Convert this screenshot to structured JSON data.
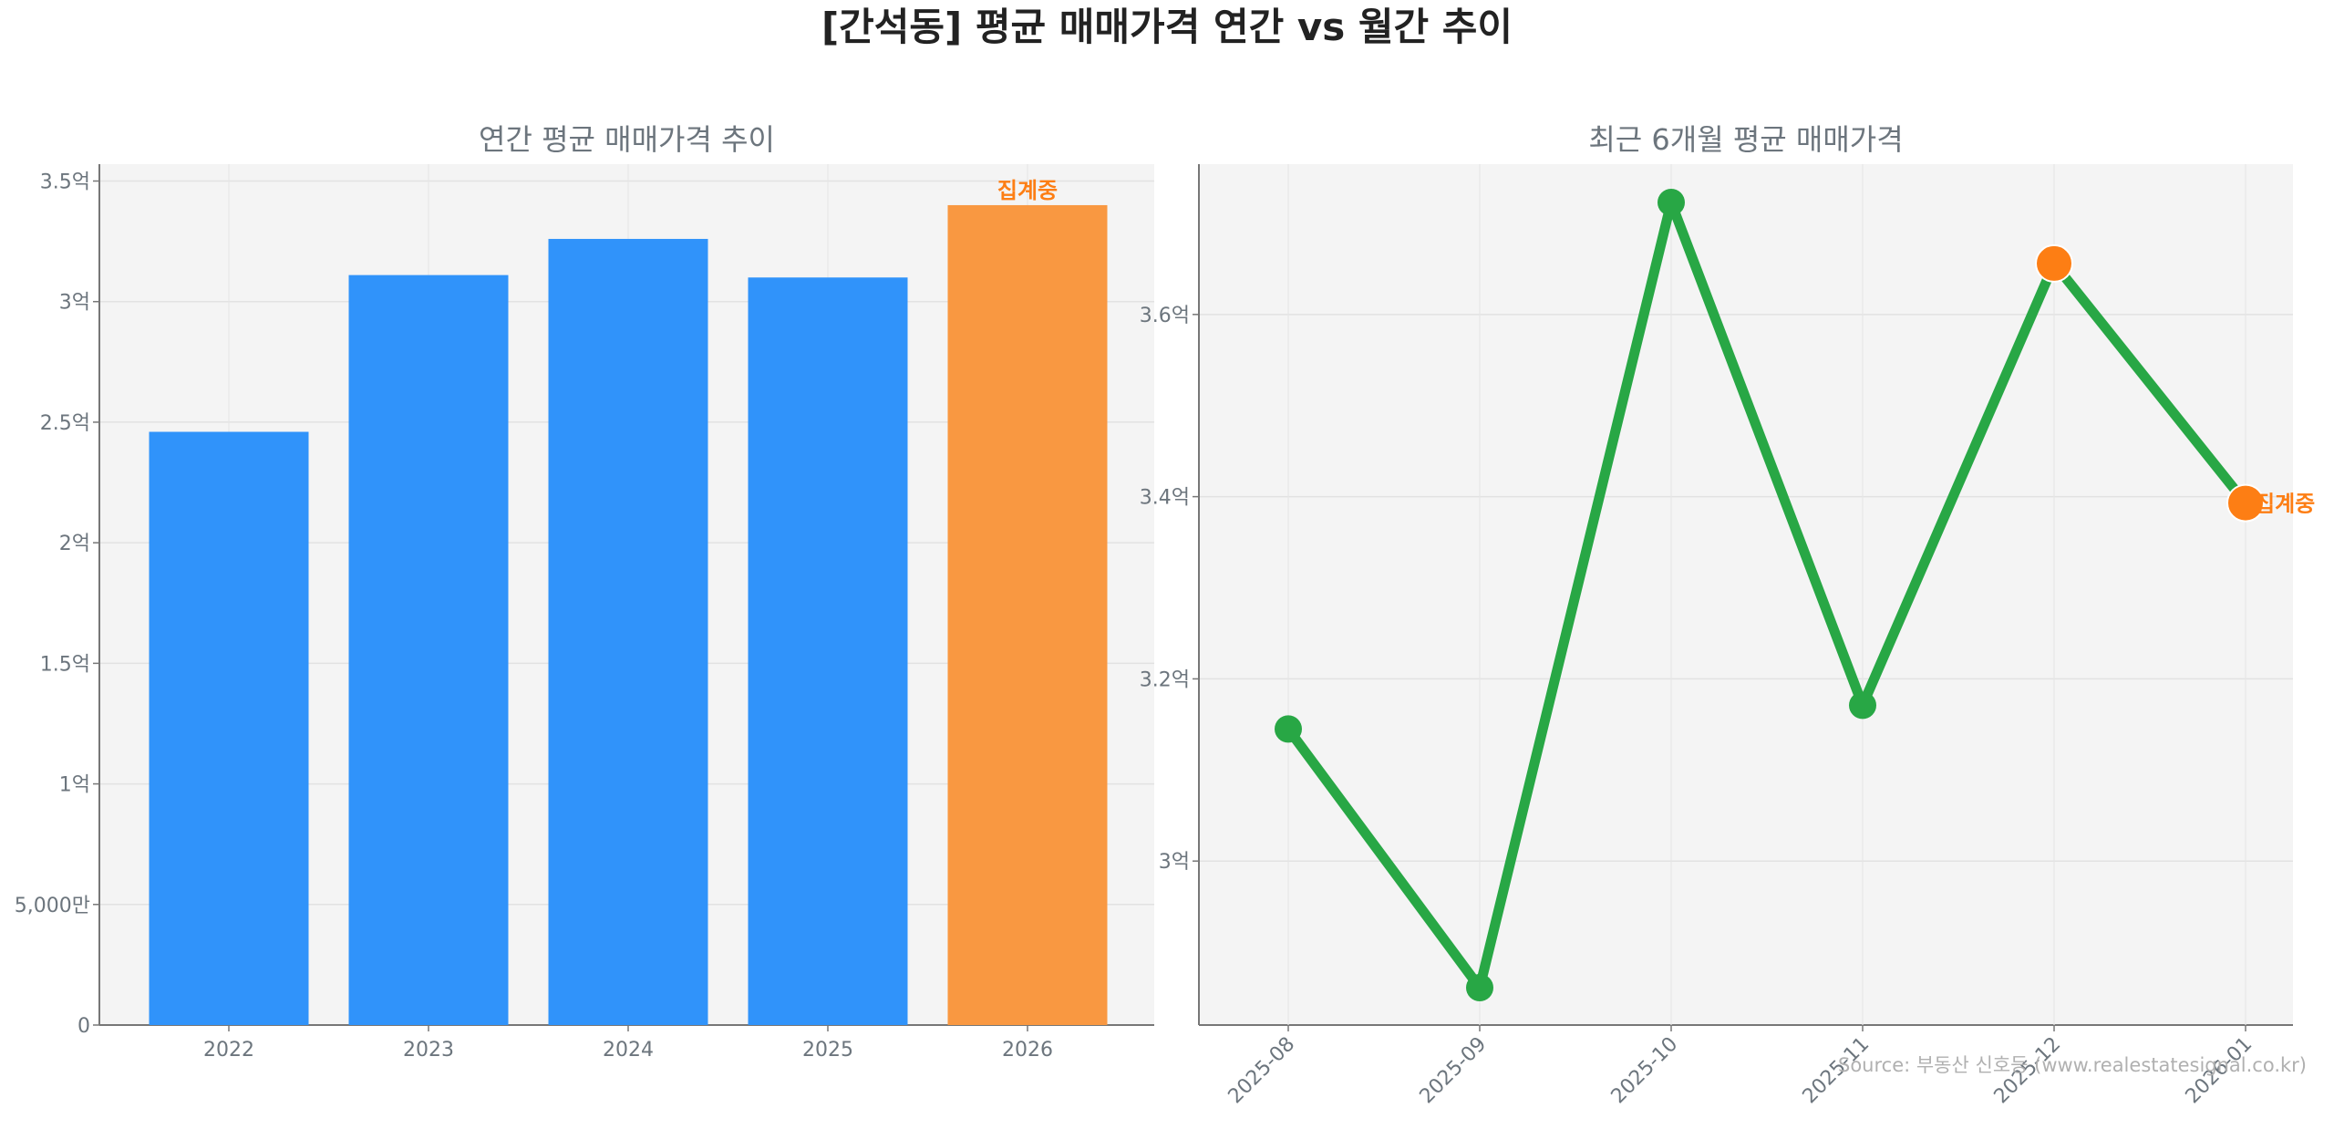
{
  "title": "[간석동] 평균 매매가격 연간 vs 월간 추이",
  "source": "Source: 부동산 신호등 (www.realestatesignal.co.kr)",
  "colors": {
    "bar": "#3093fa",
    "bar_partial": "#f99841",
    "line": "#28a745",
    "partial_marker": "#fd7e14",
    "annotation": "#fd7e14",
    "axes_bg": "#f4f4f4"
  },
  "chart_data": [
    {
      "type": "bar",
      "title": "연간 평균 매매가격 추이",
      "categories": [
        "2022",
        "2023",
        "2024",
        "2025",
        "2026"
      ],
      "values": [
        2.46,
        3.11,
        3.26,
        3.1,
        3.4
      ],
      "unit": "억",
      "ylim": [
        0,
        3.57
      ],
      "yticks": [
        0,
        0.5,
        1,
        1.5,
        2,
        2.5,
        3,
        3.5
      ],
      "ytick_labels": [
        "0",
        "5,000만",
        "1억",
        "1.5억",
        "2억",
        "2.5억",
        "3억",
        "3.5억"
      ],
      "partial_index": 4,
      "annotation": "집계중",
      "grid": true
    },
    {
      "type": "line",
      "title": "최근 6개월 평균 매매가격",
      "categories": [
        "2025-08",
        "2025-09",
        "2025-10",
        "2025-11",
        "2025-12",
        "2026-01"
      ],
      "values": [
        3.145,
        2.861,
        3.723,
        3.171,
        3.656,
        3.393
      ],
      "unit": "억",
      "ylim": [
        2.82,
        3.765
      ],
      "yticks": [
        3.0,
        3.2,
        3.4,
        3.6
      ],
      "ytick_labels": [
        "3억",
        "3.2억",
        "3.4억",
        "3.6억"
      ],
      "highlight_indices": [
        4,
        5
      ],
      "annotation": "집계중",
      "grid": true
    }
  ]
}
